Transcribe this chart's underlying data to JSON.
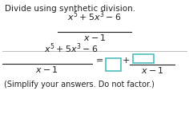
{
  "title": "Divide using synthetic division.",
  "num1": "x⁵ + 5x³ – 6",
  "den1": "x – 1",
  "num2": "x⁵ + 5x³ – 6",
  "den2": "x – 1",
  "eq": "=",
  "plus": "+",
  "frac_den": "x – 1",
  "footnote": "(Simplify your answers. Do not factor.)",
  "bg": "#ffffff",
  "tc": "#222222",
  "box_ec": "#4bbfbf",
  "divider_c": "#bbbbbb",
  "fs_title": 7.5,
  "fs_math": 8.0,
  "fs_super": 5.5,
  "fs_note": 7.0
}
